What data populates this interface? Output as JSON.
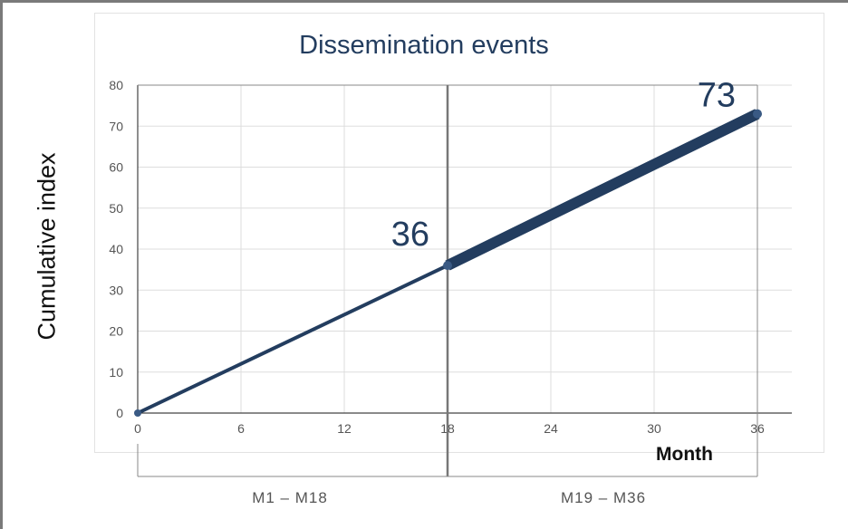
{
  "chart_data": {
    "type": "line",
    "title": "Dissemination events",
    "xlabel": "Month",
    "ylabel": "Cumulative index",
    "xlim": [
      0,
      36
    ],
    "ylim": [
      0,
      80
    ],
    "xticks": [
      "0",
      "6",
      "12",
      "18",
      "24",
      "30",
      "36"
    ],
    "yticks": [
      "0",
      "10",
      "20",
      "30",
      "40",
      "50",
      "60",
      "70",
      "80"
    ],
    "grid": true,
    "series": [
      {
        "x": [
          0,
          18
        ],
        "y": [
          0,
          36
        ]
      },
      {
        "x": [
          18,
          36
        ],
        "y": [
          36,
          73
        ]
      }
    ],
    "data_labels": [
      {
        "x": 18,
        "y": 36,
        "text": "36"
      },
      {
        "x": 36,
        "y": 73,
        "text": "73"
      }
    ],
    "periods": [
      {
        "label": "M1 – M18",
        "start": 0,
        "end": 18
      },
      {
        "label": "M19 – M36",
        "start": 18,
        "end": 36
      }
    ],
    "colors": {
      "line": "#233d5f",
      "grid": "#dddddd",
      "divider": "#777777"
    }
  }
}
